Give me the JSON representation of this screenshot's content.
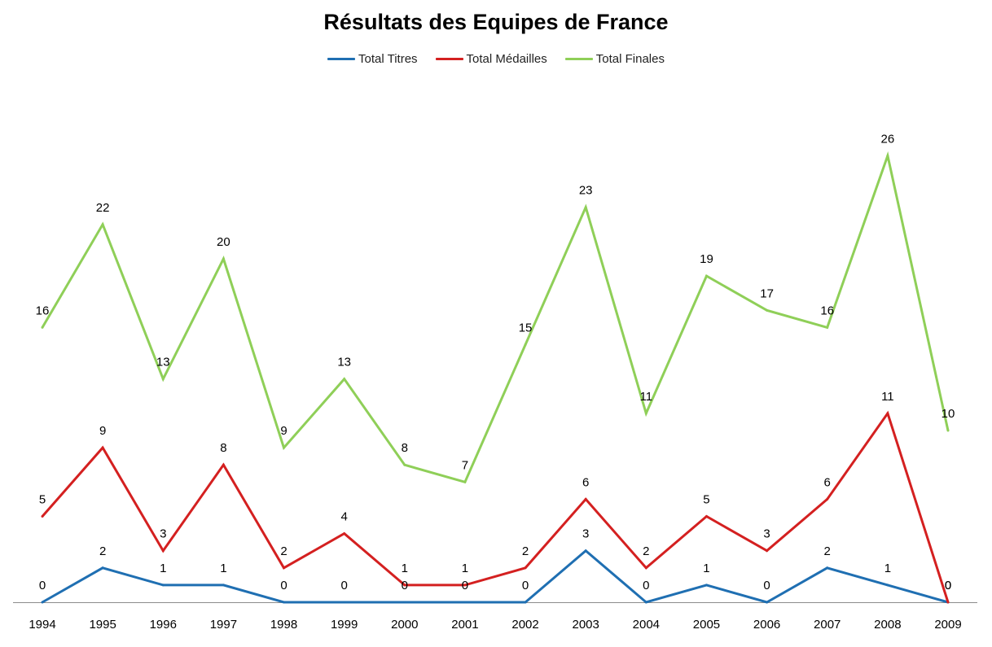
{
  "chart_data": {
    "type": "line",
    "title": "Résultats des Equipes de France",
    "xlabel": "",
    "ylabel": "",
    "categories": [
      "1994",
      "1995",
      "1996",
      "1997",
      "1998",
      "1999",
      "2000",
      "2001",
      "2002",
      "2003",
      "2004",
      "2005",
      "2006",
      "2007",
      "2008",
      "2009"
    ],
    "series": [
      {
        "name": "Total Titres",
        "color": "#1f6fb2",
        "values": [
          0,
          2,
          1,
          1,
          0,
          0,
          0,
          0,
          0,
          3,
          0,
          1,
          0,
          2,
          1,
          0
        ]
      },
      {
        "name": "Total Médailles",
        "color": "#d42020",
        "values": [
          5,
          9,
          3,
          8,
          2,
          4,
          1,
          1,
          2,
          6,
          2,
          5,
          3,
          6,
          11,
          0
        ]
      },
      {
        "name": "Total Finales",
        "color": "#8fcf58",
        "values": [
          16,
          22,
          13,
          20,
          9,
          13,
          8,
          7,
          15,
          23,
          11,
          19,
          17,
          16,
          26,
          10
        ]
      }
    ],
    "ylim": [
      0,
      30
    ],
    "grid": false,
    "legend": "top",
    "show_y_axis": false,
    "data_labels": true
  }
}
